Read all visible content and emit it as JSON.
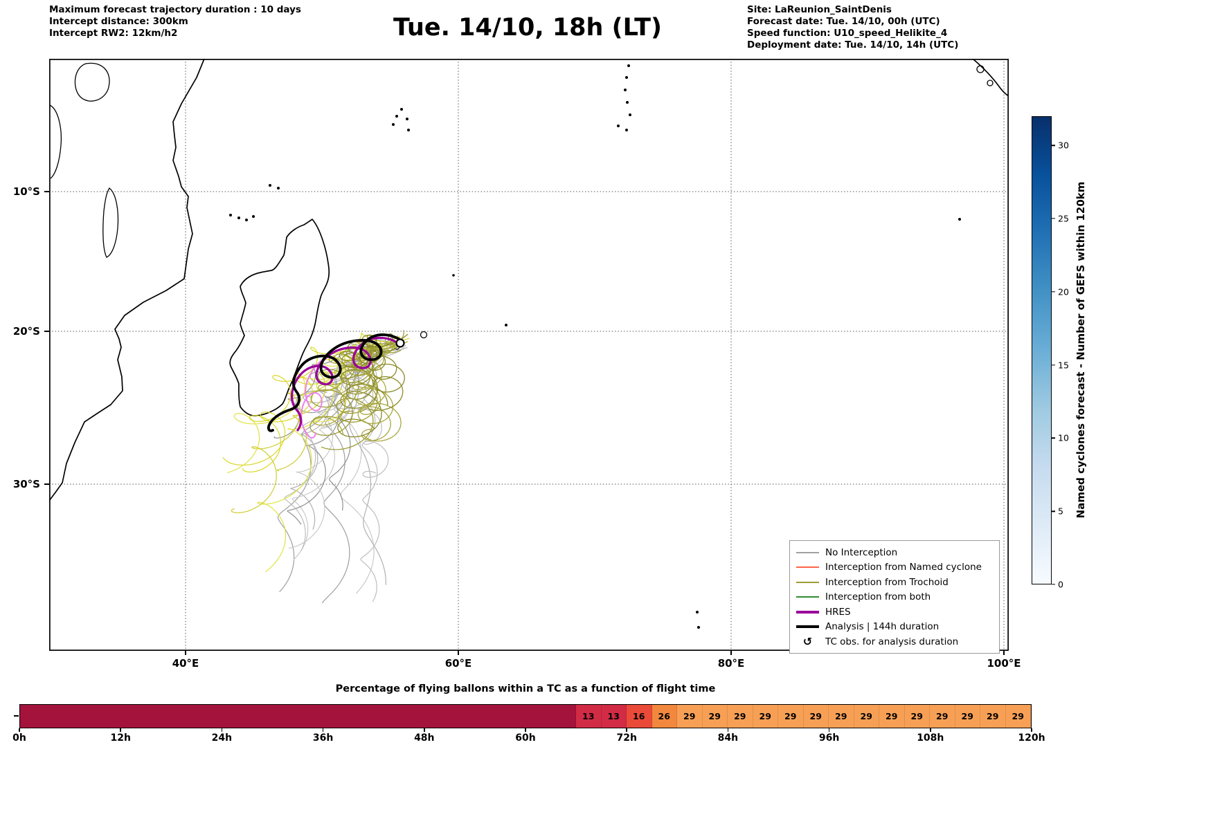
{
  "header": {
    "left_lines": [
      "Maximum forecast trajectory duration : 10 days",
      "Intercept distance: 300km",
      "Intercept RW2: 12km/h2"
    ],
    "title": "Tue. 14/10, 18h (LT)",
    "right_lines": [
      "Site: LaReunion_SaintDenis",
      "Forecast date: Tue. 14/10, 00h (UTC)",
      "Speed function: U10_speed_Helikite_4",
      "Deployment date: Tue. 14/10, 14h (UTC)"
    ]
  },
  "map": {
    "x_ticks": [
      "40°E",
      "60°E",
      "80°E",
      "100°E"
    ],
    "y_ticks": [
      "10°S",
      "20°S",
      "30°S"
    ],
    "legend": [
      {
        "label": "No Interception",
        "color": "#a0a0a0",
        "style": "thin"
      },
      {
        "label": "Interception from Named cyclone",
        "color": "#ff6347",
        "style": "thin"
      },
      {
        "label": "Interception from Trochoid",
        "color": "#9c9c34",
        "style": "thin"
      },
      {
        "label": "Interception from both",
        "color": "#2e8b30",
        "style": "thin"
      },
      {
        "label": "HRES",
        "color": "#990099",
        "style": "thick"
      },
      {
        "label": "Analysis | 144h duration",
        "color": "#000000",
        "style": "thick"
      },
      {
        "label": "TC obs. for analysis duration",
        "color": "#000000",
        "style": "symbol",
        "symbol": "↺"
      }
    ]
  },
  "colorbar": {
    "label": "Named cyclones forecast - Number of GEFS within 120km",
    "ticks": [
      0,
      5,
      10,
      15,
      20,
      25,
      30
    ],
    "vmin": 0,
    "vmax": 32,
    "colors_low_to_high": [
      "#f7fbff",
      "#deebf7",
      "#c6dbef",
      "#9ecae1",
      "#6baed6",
      "#4292c6",
      "#2171b5",
      "#08519c",
      "#08306b"
    ]
  },
  "chart_data": [
    {
      "type": "line",
      "title": "Tue. 14/10, 18h (LT)",
      "description": "Spaghetti map of forecast balloon/cyclone trajectories over the southwest Indian Ocean around Madagascar and La Reunion; trajectories start near 55.5E 20.5S and loop west-southwest toward 45-52E, 22-32S",
      "x_axis": {
        "label": "longitude",
        "tick_labels": [
          "40°E",
          "60°E",
          "80°E",
          "100°E"
        ],
        "range": [
          "30°E",
          "100.4°E"
        ]
      },
      "y_axis": {
        "label": "latitude",
        "tick_labels": [
          "10°S",
          "20°S",
          "30°S"
        ],
        "range": [
          "0.5°S",
          "40°S"
        ]
      },
      "grid": true,
      "legend_position": "lower right",
      "series_legend": [
        "No Interception",
        "Interception from Named cyclone",
        "Interception from Trochoid",
        "Interception from both",
        "HRES",
        "Analysis | 144h duration",
        "TC obs. for analysis duration"
      ],
      "colorbar_label": "Named cyclones forecast - Number of GEFS within 120km",
      "colorbar_ticks": [
        0,
        5,
        10,
        15,
        20,
        25,
        30
      ]
    },
    {
      "type": "heatmap",
      "title": "Percentage of flying ballons within a TC as a function of flight time",
      "x_tick_labels": [
        "0h",
        "12h",
        "24h",
        "36h",
        "48h",
        "60h",
        "72h",
        "84h",
        "96h",
        "108h",
        "120h"
      ],
      "x_range_hours": [
        0,
        120
      ],
      "segments": [
        {
          "from_h": 0,
          "to_h": 66,
          "value": null,
          "color": "#a4133c"
        },
        {
          "from_h": 66,
          "to_h": 69,
          "value": 13,
          "color": "#d12b45"
        },
        {
          "from_h": 69,
          "to_h": 72,
          "value": 13,
          "color": "#d12b45"
        },
        {
          "from_h": 72,
          "to_h": 75,
          "value": 16,
          "color": "#ea4a38"
        },
        {
          "from_h": 75,
          "to_h": 78,
          "value": 26,
          "color": "#f2873e"
        },
        {
          "from_h": 78,
          "to_h": 81,
          "value": 29,
          "color": "#f7a055"
        },
        {
          "from_h": 81,
          "to_h": 84,
          "value": 29,
          "color": "#f7a055"
        },
        {
          "from_h": 84,
          "to_h": 87,
          "value": 29,
          "color": "#f7a055"
        },
        {
          "from_h": 87,
          "to_h": 90,
          "value": 29,
          "color": "#f7a055"
        },
        {
          "from_h": 90,
          "to_h": 93,
          "value": 29,
          "color": "#f7a055"
        },
        {
          "from_h": 93,
          "to_h": 96,
          "value": 29,
          "color": "#f7a055"
        },
        {
          "from_h": 96,
          "to_h": 99,
          "value": 29,
          "color": "#f7a055"
        },
        {
          "from_h": 99,
          "to_h": 102,
          "value": 29,
          "color": "#f7a055"
        },
        {
          "from_h": 102,
          "to_h": 105,
          "value": 29,
          "color": "#f7a055"
        },
        {
          "from_h": 105,
          "to_h": 108,
          "value": 29,
          "color": "#f7a055"
        },
        {
          "from_h": 108,
          "to_h": 111,
          "value": 29,
          "color": "#f7a055"
        },
        {
          "from_h": 111,
          "to_h": 114,
          "value": 29,
          "color": "#f7a055"
        },
        {
          "from_h": 114,
          "to_h": 117,
          "value": 29,
          "color": "#f7a055"
        },
        {
          "from_h": 117,
          "to_h": 120,
          "value": 29,
          "color": "#f7a055"
        }
      ]
    }
  ]
}
